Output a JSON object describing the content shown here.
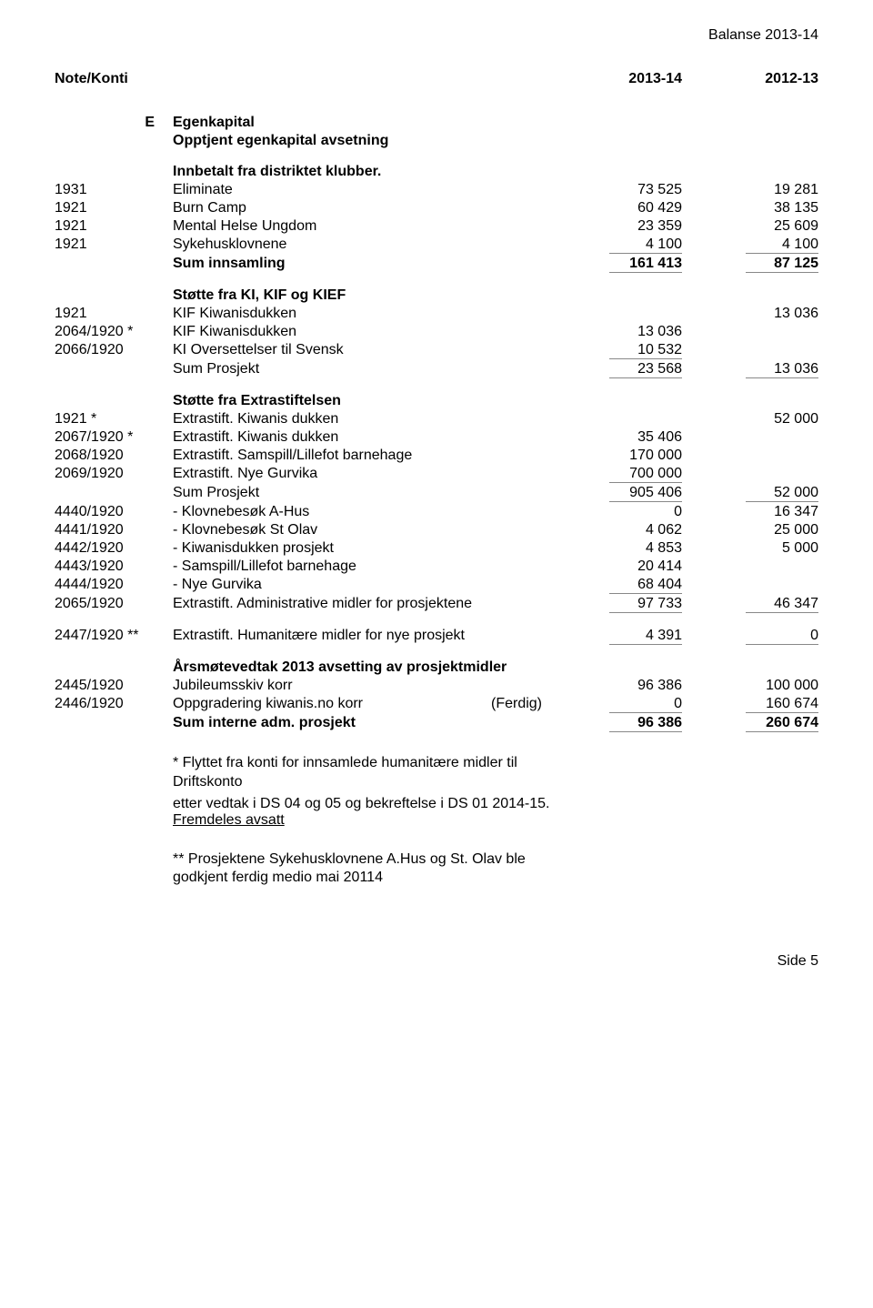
{
  "header": {
    "doc_title": "Balanse 2013-14"
  },
  "table_header": {
    "col0": "Note/Konti",
    "col1": "2013-14",
    "col2": "2012-13"
  },
  "sectE": {
    "code": "E",
    "title": "Egenkapital",
    "subtitle": "Opptjent egenkapital avsetning"
  },
  "innsamling": {
    "heading": "Innbetalt fra distriktet klubber.",
    "rows": [
      {
        "code": "1931",
        "label": "Eliminate",
        "v1": "73 525",
        "v2": "19 281"
      },
      {
        "code": "1921",
        "label": "Burn Camp",
        "v1": "60 429",
        "v2": "38 135"
      },
      {
        "code": "1921",
        "label": "Mental Helse Ungdom",
        "v1": "23 359",
        "v2": "25 609"
      },
      {
        "code": "1921",
        "label": "Sykehusklovnene",
        "v1": "4 100",
        "v2": "4 100"
      }
    ],
    "sum": {
      "label": "Sum innsamling",
      "v1": "161 413",
      "v2": "87 125"
    }
  },
  "kikief": {
    "heading": "Støtte fra KI, KIF og KIEF",
    "rows": [
      {
        "code": "1921",
        "label": "KIF Kiwanisdukken",
        "v1": "",
        "v2": "13 036"
      },
      {
        "code": "2064/1920 *",
        "label": "KIF Kiwanisdukken",
        "v1": "13 036",
        "v2": ""
      },
      {
        "code": "2066/1920",
        "label": "KI Oversettelser til Svensk",
        "v1": "10 532",
        "v2": ""
      }
    ],
    "sum": {
      "label": "Sum Prosjekt",
      "v1": "23 568",
      "v2": "13 036"
    }
  },
  "extrastift": {
    "heading": "Støtte fra Extrastiftelsen",
    "rows": [
      {
        "code": "1921 *",
        "label": "Extrastift. Kiwanis dukken",
        "v1": "",
        "v2": "52 000"
      },
      {
        "code": "2067/1920 *",
        "label": "Extrastift. Kiwanis dukken",
        "v1": "35 406",
        "v2": ""
      },
      {
        "code": "2068/1920",
        "label": "Extrastift. Samspill/Lillefot barnehage",
        "v1": "170 000",
        "v2": ""
      },
      {
        "code": "2069/1920",
        "label": "Extrastift. Nye Gurvika",
        "v1": "700 000",
        "v2": ""
      }
    ],
    "sum": {
      "label": "Sum Prosjekt",
      "v1": "905 406",
      "v2": "52 000"
    },
    "expenses": [
      {
        "code": "4440/1920",
        "label": " - Klovnebesøk A-Hus",
        "v1": "0",
        "v2": "16 347"
      },
      {
        "code": "4441/1920",
        "label": " - Klovnebesøk  St Olav",
        "v1": "4 062",
        "v2": "25 000"
      },
      {
        "code": "4442/1920",
        "label": " - Kiwanisdukken prosjekt",
        "v1": "4 853",
        "v2": "5 000"
      },
      {
        "code": "4443/1920",
        "label": " - Samspill/Lillefot barnehage",
        "v1": "20 414",
        "v2": ""
      },
      {
        "code": "4444/1920",
        "label": " - Nye Gurvika",
        "v1": "68 404",
        "v2": ""
      }
    ],
    "admin": {
      "code": "2065/1920",
      "label": "Extrastift. Administrative midler for prosjektene",
      "v1": "97 733",
      "v2": "46 347"
    }
  },
  "humanit": {
    "code": "2447/1920 **",
    "label": "Extrastift. Humanitære midler for nye prosjekt",
    "v1": "4 391",
    "v2": "0"
  },
  "aarsmote": {
    "heading": "Årsmøtevedtak 2013 avsetting av prosjektmidler",
    "rows": [
      {
        "code": "2445/1920",
        "label": "Jubileumsskiv korr",
        "v1": "96 386",
        "v2": "100 000"
      },
      {
        "code": "2446/1920",
        "label": "Oppgradering kiwanis.no korr",
        "extra": "(Ferdig)",
        "v1": "0",
        "v2": "160 674"
      }
    ],
    "sum": {
      "label": "Sum interne adm. prosjekt",
      "v1": "96 386",
      "v2": "260 674"
    }
  },
  "notes": {
    "line1": "* Flyttet fra konti for innsamlede humanitære midler til Driftskonto",
    "line2a": " etter vedtak i DS 04 og 05 og bekreftelse i DS 01 2014-15. ",
    "line2b": "Fremdeles avsatt",
    "line3": "** Prosjektene Sykehusklovnene A.Hus og St. Olav ble godkjent ferdig medio mai 20114"
  },
  "footer": {
    "page": "Side 5"
  }
}
